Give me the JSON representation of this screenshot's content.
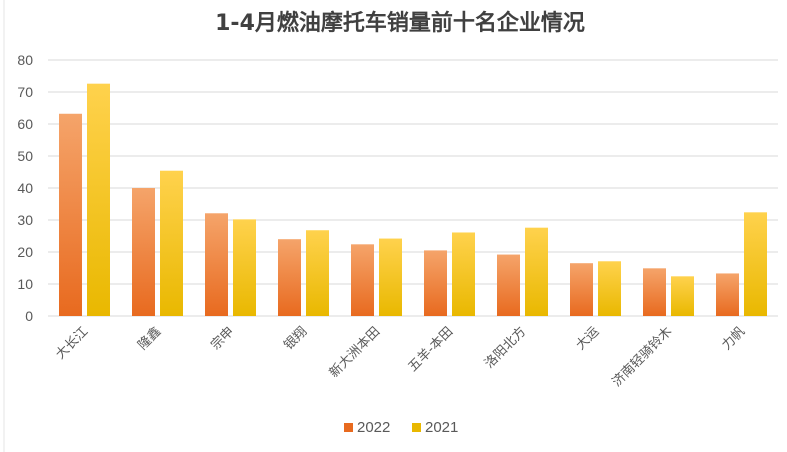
{
  "chart_data": {
    "type": "bar",
    "title": "1-4月燃油摩托车销量前十名企业情况",
    "xlabel": "",
    "ylabel": "",
    "categories": [
      "大长江",
      "隆鑫",
      "宗申",
      "银翔",
      "新大洲本田",
      "五羊-本田",
      "洛阳北方",
      "大运",
      "济南轻骑铃木",
      "力帆"
    ],
    "series": [
      {
        "name": "2022",
        "values": [
          63.2,
          40.0,
          32.1,
          24.0,
          22.4,
          20.5,
          19.2,
          16.5,
          14.9,
          13.3
        ]
      },
      {
        "name": "2021",
        "values": [
          72.6,
          45.4,
          30.2,
          26.8,
          24.2,
          26.1,
          27.6,
          17.1,
          12.4,
          32.4
        ]
      }
    ],
    "ylim": [
      0,
      80
    ],
    "yticks": [
      "0",
      "10",
      "20",
      "30",
      "40",
      "50",
      "60",
      "70",
      "80"
    ],
    "grid": true,
    "legend_position": "bottom",
    "colors": {
      "2022": [
        "#f5a46a",
        "#e86a1f"
      ],
      "2021": [
        "#ffd24d",
        "#e9b800"
      ]
    }
  }
}
